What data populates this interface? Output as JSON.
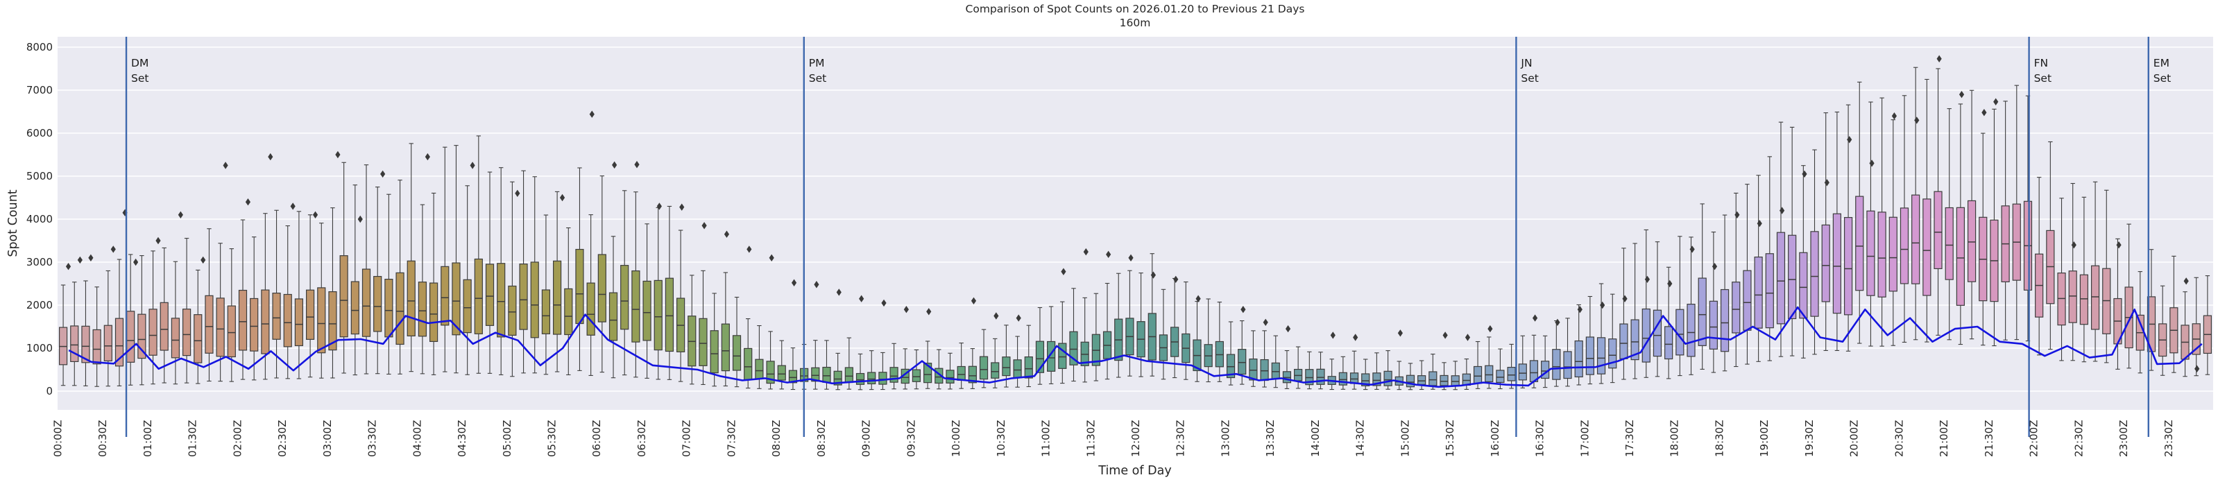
{
  "title": {
    "line1": "Comparison of Spot Counts on 2026.01.20 to Previous 21 Days",
    "line2": "160m"
  },
  "axes": {
    "y_label": "Spot Count",
    "x_label": "Time of Day",
    "y_ticks": [
      "0",
      "1000",
      "2000",
      "3000",
      "4000",
      "5000",
      "6000",
      "7000",
      "8000"
    ],
    "y_tick_values": [
      0,
      1000,
      2000,
      3000,
      4000,
      5000,
      6000,
      7000,
      8000
    ],
    "x_ticks": [
      "00:00Z",
      "00:30Z",
      "01:00Z",
      "01:30Z",
      "02:00Z",
      "02:30Z",
      "03:00Z",
      "03:30Z",
      "04:00Z",
      "04:30Z",
      "05:00Z",
      "05:30Z",
      "06:00Z",
      "06:30Z",
      "07:00Z",
      "07:30Z",
      "08:00Z",
      "08:30Z",
      "09:00Z",
      "09:30Z",
      "10:00Z",
      "10:30Z",
      "11:00Z",
      "11:30Z",
      "12:00Z",
      "12:30Z",
      "13:00Z",
      "13:30Z",
      "14:00Z",
      "14:30Z",
      "15:00Z",
      "15:30Z",
      "16:00Z",
      "16:30Z",
      "17:00Z",
      "17:30Z",
      "18:00Z",
      "18:30Z",
      "19:00Z",
      "19:30Z",
      "20:00Z",
      "20:30Z",
      "21:00Z",
      "21:30Z",
      "22:00Z",
      "22:30Z",
      "23:00Z",
      "23:30Z"
    ],
    "x_tick_hours": [
      0,
      0.5,
      1,
      1.5,
      2,
      2.5,
      3,
      3.5,
      4,
      4.5,
      5,
      5.5,
      6,
      6.5,
      7,
      7.5,
      8,
      8.5,
      9,
      9.5,
      10,
      10.5,
      11,
      11.5,
      12,
      12.5,
      13,
      13.5,
      14,
      14.5,
      15,
      15.5,
      16,
      16.5,
      17,
      17.5,
      18,
      18.5,
      19,
      19.5,
      20,
      20.5,
      21,
      21.5,
      22,
      22.5,
      23,
      23.5
    ]
  },
  "set_lines": [
    {
      "name": "DM",
      "suffix": "Set",
      "hour": 0.765
    },
    {
      "name": "PM",
      "suffix": "Set",
      "hour": 8.31
    },
    {
      "name": "JN",
      "suffix": "Set",
      "hour": 16.24
    },
    {
      "name": "FN",
      "suffix": "Set",
      "hour": 21.95
    },
    {
      "name": "EM",
      "suffix": "Set",
      "hour": 23.28
    }
  ],
  "colors": {
    "plot_bg": "#eaeaf2",
    "grid": "#ffffff",
    "box_edge": "#3d3d3d",
    "outlier": "#3a3a3a",
    "current_line": "#1414e0",
    "set_line": "#3e68ae",
    "text": "#262626"
  },
  "chart_data": {
    "type": "box",
    "subtype": "boxplot-with-overlay-line",
    "x_unit": "hours UTC",
    "y_range_shown": [
      0,
      8000
    ],
    "box_resolution_minutes": 7.5,
    "line_resolution_minutes": 15,
    "description": "Boxes = distribution of spot counts over previous 21 days per time bin; blue line = counts on 2026.01.20; vertical lines = DM/PM/JN/FN/EM set times.",
    "box_keyframes": [
      [
        0.0,
        1150,
        750,
        1550,
        150,
        2600
      ],
      [
        0.5,
        1100,
        700,
        1650,
        120,
        2900
      ],
      [
        1.0,
        1200,
        750,
        1800,
        150,
        3100
      ],
      [
        1.5,
        1350,
        850,
        1950,
        200,
        3400
      ],
      [
        2.0,
        1500,
        950,
        2100,
        250,
        3700
      ],
      [
        2.5,
        1650,
        1050,
        2350,
        300,
        4200
      ],
      [
        3.0,
        1800,
        1150,
        2600,
        350,
        4700
      ],
      [
        3.5,
        1950,
        1250,
        2800,
        400,
        5000
      ],
      [
        4.0,
        2050,
        1300,
        2900,
        450,
        5200
      ],
      [
        4.5,
        2000,
        1250,
        2850,
        400,
        5100
      ],
      [
        5.0,
        1950,
        1200,
        2750,
        350,
        5000
      ],
      [
        5.5,
        2100,
        1500,
        3000,
        480,
        4900
      ],
      [
        6.0,
        2000,
        1400,
        2900,
        400,
        4600
      ],
      [
        6.5,
        1800,
        1100,
        2600,
        300,
        4100
      ],
      [
        7.0,
        1400,
        800,
        2000,
        200,
        3300
      ],
      [
        7.5,
        800,
        450,
        1300,
        100,
        2300
      ],
      [
        8.0,
        400,
        220,
        650,
        50,
        1300
      ],
      [
        8.5,
        320,
        180,
        500,
        40,
        1050
      ],
      [
        9.0,
        300,
        170,
        480,
        40,
        1000
      ],
      [
        9.5,
        320,
        180,
        520,
        50,
        1050
      ],
      [
        10.0,
        380,
        220,
        600,
        60,
        1150
      ],
      [
        10.5,
        480,
        280,
        750,
        80,
        1400
      ],
      [
        11.0,
        700,
        420,
        1050,
        150,
        1900
      ],
      [
        11.5,
        1000,
        620,
        1400,
        250,
        2500
      ],
      [
        12.0,
        1250,
        800,
        1700,
        350,
        2900
      ],
      [
        12.5,
        1100,
        700,
        1500,
        300,
        2700
      ],
      [
        13.0,
        700,
        430,
        1000,
        180,
        1800
      ],
      [
        13.5,
        420,
        250,
        620,
        80,
        1200
      ],
      [
        14.0,
        300,
        170,
        450,
        50,
        900
      ],
      [
        14.5,
        250,
        140,
        400,
        40,
        800
      ],
      [
        15.0,
        230,
        130,
        380,
        40,
        750
      ],
      [
        15.5,
        250,
        140,
        400,
        40,
        800
      ],
      [
        16.0,
        350,
        200,
        550,
        60,
        1100
      ],
      [
        16.5,
        500,
        280,
        800,
        90,
        1500
      ],
      [
        17.0,
        700,
        400,
        1100,
        150,
        2100
      ],
      [
        17.5,
        1000,
        600,
        1500,
        250,
        2900
      ],
      [
        18.0,
        1300,
        800,
        1900,
        350,
        3500
      ],
      [
        18.5,
        1700,
        1100,
        2400,
        500,
        4200
      ],
      [
        19.0,
        2100,
        1400,
        2900,
        650,
        4900
      ],
      [
        19.5,
        2500,
        1700,
        3400,
        800,
        5600
      ],
      [
        20.0,
        2900,
        2000,
        3900,
        950,
        6200
      ],
      [
        20.5,
        3200,
        2300,
        4300,
        1100,
        6700
      ],
      [
        21.0,
        3400,
        2400,
        4500,
        1200,
        7000
      ],
      [
        21.5,
        3300,
        2300,
        4300,
        1150,
        6700
      ],
      [
        22.0,
        2900,
        2000,
        3800,
        1000,
        6000
      ],
      [
        22.5,
        2200,
        1450,
        2900,
        700,
        4700
      ],
      [
        23.0,
        1600,
        1050,
        2150,
        500,
        3500
      ],
      [
        23.5,
        1300,
        850,
        1750,
        400,
        2800
      ],
      [
        23.94,
        1200,
        800,
        1600,
        350,
        2600
      ]
    ],
    "box_keyframe_fields": [
      "hour",
      "median",
      "q1",
      "q3",
      "whisker_low",
      "whisker_high"
    ],
    "current_day_line": [
      950,
      680,
      640,
      1100,
      520,
      760,
      560,
      800,
      520,
      930,
      480,
      920,
      1190,
      1210,
      1100,
      1750,
      1580,
      1640,
      1100,
      1360,
      1180,
      600,
      1000,
      1780,
      1200,
      900,
      600,
      550,
      500,
      350,
      250,
      300,
      200,
      280,
      180,
      220,
      250,
      300,
      700,
      300,
      250,
      200,
      300,
      350,
      1050,
      650,
      700,
      830,
      700,
      650,
      600,
      350,
      400,
      250,
      300,
      200,
      250,
      200,
      150,
      250,
      150,
      100,
      130,
      200,
      150,
      130,
      520,
      550,
      560,
      700,
      900,
      1750,
      1100,
      1250,
      1200,
      1500,
      1200,
      1950,
      1250,
      1150,
      1900,
      1300,
      1700,
      1150,
      1450,
      1500,
      1150,
      1100,
      820,
      1050,
      780,
      850,
      1900,
      630,
      650,
      1100
    ],
    "outliers": [
      [
        0.12,
        2900
      ],
      [
        0.25,
        3050
      ],
      [
        0.37,
        3100
      ],
      [
        0.62,
        3300
      ],
      [
        0.75,
        4150
      ],
      [
        0.87,
        3000
      ],
      [
        1.12,
        3500
      ],
      [
        1.37,
        4100
      ],
      [
        1.62,
        3050
      ],
      [
        1.87,
        5250
      ],
      [
        2.12,
        4400
      ],
      [
        2.37,
        5450
      ],
      [
        2.62,
        4300
      ],
      [
        2.87,
        4100
      ],
      [
        3.12,
        5500
      ],
      [
        3.37,
        4000
      ],
      [
        3.62,
        5050
      ],
      [
        4.12,
        5450
      ],
      [
        4.62,
        5250
      ],
      [
        5.12,
        4600
      ],
      [
        5.62,
        4500
      ],
      [
        5.95,
        6440
      ],
      [
        6.2,
        5260
      ],
      [
        6.45,
        5270
      ],
      [
        6.7,
        4300
      ],
      [
        6.95,
        4280
      ],
      [
        7.2,
        3850
      ],
      [
        7.45,
        3650
      ],
      [
        7.7,
        3300
      ],
      [
        7.95,
        3100
      ],
      [
        8.2,
        2520
      ],
      [
        8.45,
        2480
      ],
      [
        8.7,
        2300
      ],
      [
        8.95,
        2150
      ],
      [
        9.2,
        2050
      ],
      [
        9.45,
        1900
      ],
      [
        9.7,
        1850
      ],
      [
        10.2,
        2100
      ],
      [
        10.45,
        1750
      ],
      [
        10.7,
        1700
      ],
      [
        11.2,
        2780
      ],
      [
        11.45,
        3240
      ],
      [
        11.7,
        3180
      ],
      [
        11.95,
        3100
      ],
      [
        12.2,
        2700
      ],
      [
        12.45,
        2600
      ],
      [
        12.7,
        2150
      ],
      [
        13.2,
        1900
      ],
      [
        13.45,
        1600
      ],
      [
        13.7,
        1450
      ],
      [
        14.2,
        1300
      ],
      [
        14.45,
        1250
      ],
      [
        14.95,
        1350
      ],
      [
        15.45,
        1300
      ],
      [
        15.7,
        1250
      ],
      [
        15.95,
        1450
      ],
      [
        16.45,
        1700
      ],
      [
        16.7,
        1600
      ],
      [
        16.95,
        1900
      ],
      [
        17.2,
        2000
      ],
      [
        17.45,
        2150
      ],
      [
        17.7,
        2600
      ],
      [
        17.95,
        2500
      ],
      [
        18.2,
        3300
      ],
      [
        18.45,
        2900
      ],
      [
        18.7,
        4100
      ],
      [
        18.95,
        3900
      ],
      [
        19.2,
        4200
      ],
      [
        19.45,
        5050
      ],
      [
        19.7,
        4850
      ],
      [
        19.95,
        5850
      ],
      [
        20.2,
        5300
      ],
      [
        20.45,
        6400
      ],
      [
        20.7,
        6300
      ],
      [
        20.95,
        7730
      ],
      [
        21.2,
        6900
      ],
      [
        21.45,
        6480
      ],
      [
        21.58,
        6730
      ],
      [
        22.45,
        3400
      ],
      [
        22.95,
        3400
      ],
      [
        23.7,
        2560
      ],
      [
        23.82,
        520
      ]
    ],
    "palette_stops": [
      [
        0.0,
        "#cfa3a9"
      ],
      [
        1.0,
        "#cd9a92"
      ],
      [
        2.0,
        "#c89579"
      ],
      [
        3.0,
        "#bd9465"
      ],
      [
        4.0,
        "#b39556"
      ],
      [
        5.0,
        "#a89a52"
      ],
      [
        6.0,
        "#9d9c50"
      ],
      [
        7.0,
        "#8aa05c"
      ],
      [
        7.7,
        "#79a468"
      ],
      [
        8.7,
        "#6fa571"
      ],
      [
        10.0,
        "#66a47e"
      ],
      [
        11.0,
        "#5fa089"
      ],
      [
        12.0,
        "#5b9a8f"
      ],
      [
        13.0,
        "#619b97"
      ],
      [
        14.0,
        "#6f9da4"
      ],
      [
        15.0,
        "#7d9fb4"
      ],
      [
        16.0,
        "#87a3c4"
      ],
      [
        17.0,
        "#92a6d2"
      ],
      [
        18.0,
        "#9fa5da"
      ],
      [
        18.5,
        "#a9a2dc"
      ],
      [
        19.0,
        "#b49fdc"
      ],
      [
        19.5,
        "#bf9dda"
      ],
      [
        20.0,
        "#c99bd8"
      ],
      [
        20.5,
        "#d29ad5"
      ],
      [
        21.0,
        "#d698cb"
      ],
      [
        21.5,
        "#d798c0"
      ],
      [
        22.0,
        "#d69ab4"
      ],
      [
        22.5,
        "#d49dae"
      ],
      [
        23.0,
        "#d2a0a9"
      ],
      [
        23.94,
        "#d0a2a6"
      ]
    ]
  }
}
